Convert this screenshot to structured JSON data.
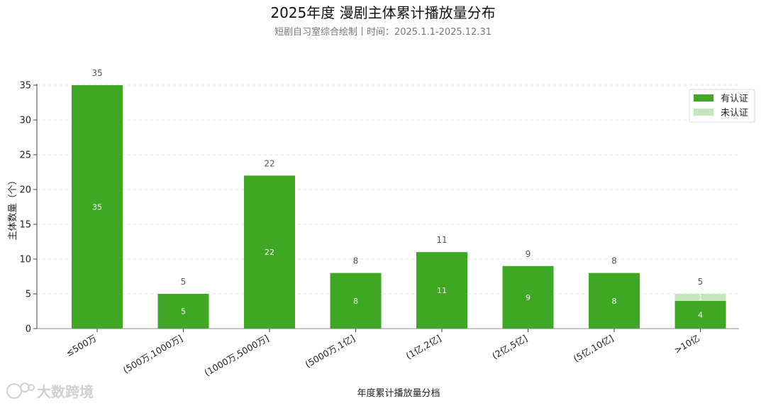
{
  "chart_data": {
    "type": "bar",
    "stacked": true,
    "title": "2025年度 漫剧主体累计播放量分布",
    "subtitle": "短剧自习室综合绘制丨时间：2025.1.1-2025.12.31",
    "xlabel": "年度累计播放量分档",
    "ylabel": "主体数量（个）",
    "ylim": [
      0,
      35
    ],
    "yticks": [
      0,
      5,
      10,
      15,
      20,
      25,
      30,
      35
    ],
    "grid": "horizontal-dashed",
    "legend_position": "top-right",
    "categories": [
      "≤500万",
      "(500万,1000万]",
      "(1000万,5000万]",
      "(5000万,1亿]",
      "(1亿,2亿]",
      "(2亿,5亿]",
      "(5亿,10亿]",
      ">10亿"
    ],
    "series": [
      {
        "name": "有认证",
        "color": "#3ea724",
        "values": [
          35,
          5,
          22,
          8,
          11,
          9,
          8,
          4
        ]
      },
      {
        "name": "未认证",
        "color": "#c4e6bc",
        "values": [
          0,
          0,
          0,
          0,
          0,
          0,
          0,
          1
        ]
      }
    ],
    "totals": [
      35,
      5,
      22,
      8,
      11,
      9,
      8,
      5
    ]
  },
  "watermark": {
    "text": "大数跨境",
    "icon": "spiral-logo-icon"
  }
}
